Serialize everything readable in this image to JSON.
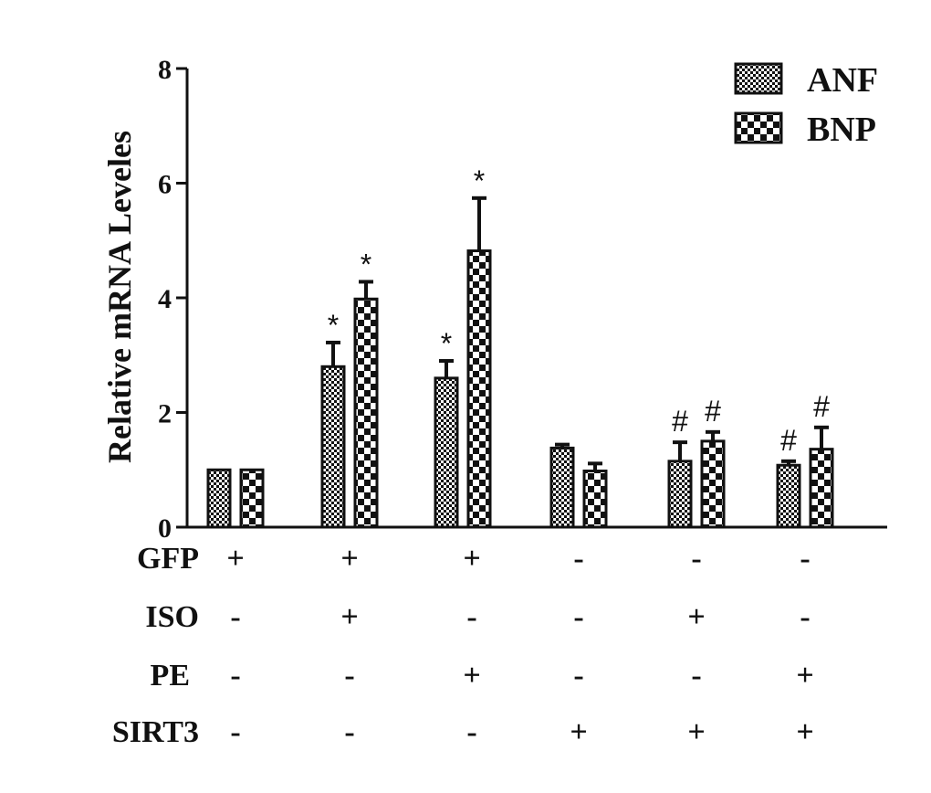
{
  "chart_data": {
    "type": "bar",
    "title": "",
    "ylabel": "Relative mRNA Leveles",
    "xlabel": "",
    "ylim": [
      0,
      8
    ],
    "yticks": [
      "0",
      "2",
      "4",
      "6",
      "8"
    ],
    "legend_position": "top-right",
    "series": [
      {
        "name": "ANF",
        "values": [
          1.0,
          2.8,
          2.6,
          1.38,
          1.15,
          1.08
        ],
        "errors": [
          0.0,
          0.42,
          0.3,
          0.06,
          0.33,
          0.07
        ],
        "annotations": [
          "",
          "*",
          "*",
          "",
          "#",
          "#"
        ]
      },
      {
        "name": "BNP",
        "values": [
          1.0,
          3.98,
          4.82,
          0.98,
          1.5,
          1.36
        ],
        "errors": [
          0.0,
          0.3,
          0.92,
          0.13,
          0.16,
          0.38
        ],
        "annotations": [
          "",
          "*",
          "*",
          "",
          "#",
          "#"
        ]
      }
    ],
    "treatments": [
      {
        "name": "GFP",
        "values": [
          "+",
          "+",
          "+",
          "-",
          "-",
          "-"
        ]
      },
      {
        "name": "ISO",
        "values": [
          "-",
          "+",
          "-",
          "-",
          "+",
          "-"
        ]
      },
      {
        "name": "PE",
        "values": [
          "-",
          "-",
          "+",
          "-",
          "-",
          "+"
        ]
      },
      {
        "name": "SIRT3",
        "values": [
          "-",
          "-",
          "-",
          "+",
          "+",
          "+"
        ]
      }
    ]
  }
}
